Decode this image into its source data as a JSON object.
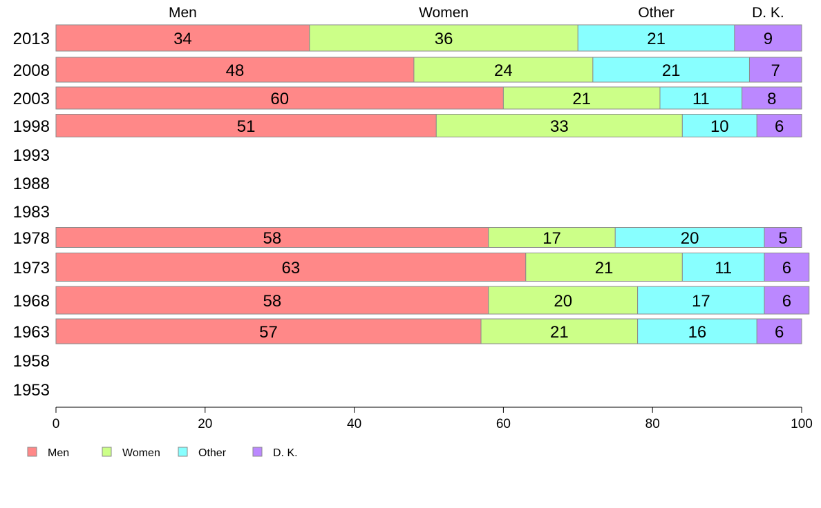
{
  "chart_data": {
    "type": "bar",
    "orientation": "horizontal",
    "stacked": true,
    "categories": [
      "2013",
      "2008",
      "2003",
      "1998",
      "1993",
      "1988",
      "1983",
      "1978",
      "1973",
      "1968",
      "1963",
      "1958",
      "1953"
    ],
    "series": [
      {
        "name": "Men",
        "color": "#ff8888",
        "values": [
          34,
          48,
          60,
          51,
          null,
          null,
          null,
          58,
          63,
          58,
          57,
          null,
          null
        ]
      },
      {
        "name": "Women",
        "color": "#ccff88",
        "values": [
          36,
          24,
          21,
          33,
          null,
          null,
          null,
          17,
          21,
          20,
          21,
          null,
          null
        ]
      },
      {
        "name": "Other",
        "color": "#88ffff",
        "values": [
          21,
          21,
          11,
          10,
          null,
          null,
          null,
          20,
          11,
          17,
          16,
          null,
          null
        ]
      },
      {
        "name": "D. K.",
        "color": "#bb88ff",
        "values": [
          9,
          7,
          8,
          6,
          null,
          null,
          null,
          5,
          6,
          6,
          6,
          null,
          null
        ]
      }
    ],
    "column_headers": [
      "Men",
      "Women",
      "Other",
      "D. K."
    ],
    "xlim": [
      0,
      100
    ],
    "xticks": [
      "0",
      "20",
      "40",
      "60",
      "80",
      "100"
    ],
    "legend": {
      "position": "bottom-left",
      "items": [
        "Men",
        "Women",
        "Other",
        "D. K."
      ]
    },
    "grid": false
  }
}
